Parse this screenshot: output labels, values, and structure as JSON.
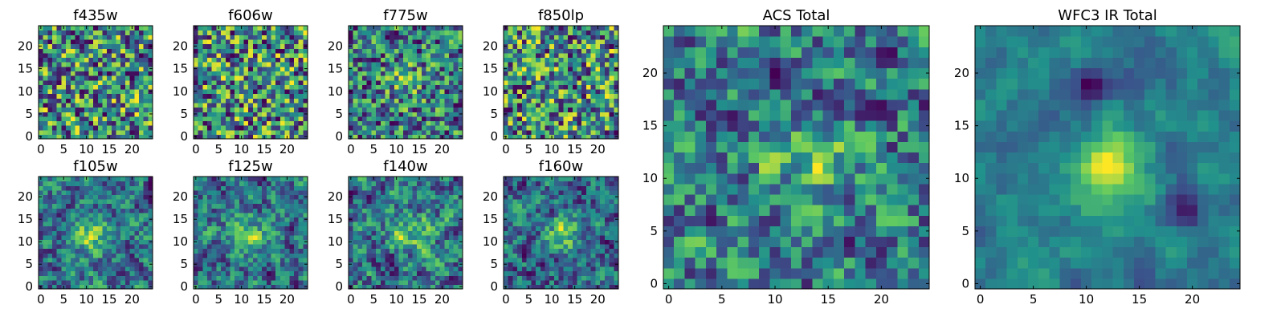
{
  "figure": {
    "colormap": "viridis",
    "colormap_stops": [
      "#440154",
      "#3b528b",
      "#21918c",
      "#5ec962",
      "#fde725"
    ]
  },
  "chart_data": [
    {
      "type": "heatmap",
      "title": "f435w",
      "grid": [
        25,
        25
      ],
      "xticks": [
        0,
        5,
        10,
        15,
        20
      ],
      "yticks": [
        0,
        5,
        10,
        15,
        20
      ],
      "xlim": [
        -0.5,
        24.5
      ],
      "ylim": [
        -0.5,
        24.5
      ],
      "seed": 11,
      "smooth": 0,
      "blobs": []
    },
    {
      "type": "heatmap",
      "title": "f606w",
      "grid": [
        25,
        25
      ],
      "xticks": [
        0,
        5,
        10,
        15,
        20
      ],
      "yticks": [
        0,
        5,
        10,
        15,
        20
      ],
      "xlim": [
        -0.5,
        24.5
      ],
      "ylim": [
        -0.5,
        24.5
      ],
      "seed": 23,
      "smooth": 0,
      "blobs": []
    },
    {
      "type": "heatmap",
      "title": "f775w",
      "grid": [
        25,
        25
      ],
      "xticks": [
        0,
        5,
        10,
        15,
        20
      ],
      "yticks": [
        0,
        5,
        10,
        15,
        20
      ],
      "xlim": [
        -0.5,
        24.5
      ],
      "ylim": [
        -0.5,
        24.5
      ],
      "seed": 37,
      "smooth": 0,
      "blobs": [
        [
          12,
          12,
          0.25,
          3
        ]
      ]
    },
    {
      "type": "heatmap",
      "title": "f850lp",
      "grid": [
        25,
        25
      ],
      "xticks": [
        0,
        5,
        10,
        15,
        20
      ],
      "yticks": [
        0,
        5,
        10,
        15,
        20
      ],
      "xlim": [
        -0.5,
        24.5
      ],
      "ylim": [
        -0.5,
        24.5
      ],
      "seed": 41,
      "smooth": 0,
      "blobs": []
    },
    {
      "type": "heatmap",
      "title": "f105w",
      "grid": [
        25,
        25
      ],
      "xticks": [
        0,
        5,
        10,
        15,
        20
      ],
      "yticks": [
        0,
        5,
        10,
        15,
        20
      ],
      "xlim": [
        -0.5,
        24.5
      ],
      "ylim": [
        -0.5,
        24.5
      ],
      "seed": 53,
      "smooth": 1,
      "blobs": [
        [
          11,
          11,
          0.35,
          3
        ]
      ]
    },
    {
      "type": "heatmap",
      "title": "f125w",
      "grid": [
        25,
        25
      ],
      "xticks": [
        0,
        5,
        10,
        15,
        20
      ],
      "yticks": [
        0,
        5,
        10,
        15,
        20
      ],
      "xlim": [
        -0.5,
        24.5
      ],
      "ylim": [
        -0.5,
        24.5
      ],
      "seed": 67,
      "smooth": 1,
      "blobs": [
        [
          12,
          12,
          0.3,
          3
        ]
      ]
    },
    {
      "type": "heatmap",
      "title": "f140w",
      "grid": [
        25,
        25
      ],
      "xticks": [
        0,
        5,
        10,
        15,
        20
      ],
      "yticks": [
        0,
        5,
        10,
        15,
        20
      ],
      "xlim": [
        -0.5,
        24.5
      ],
      "ylim": [
        -0.5,
        24.5
      ],
      "seed": 79,
      "smooth": 1,
      "blobs": [
        [
          13,
          12,
          0.35,
          3
        ]
      ]
    },
    {
      "type": "heatmap",
      "title": "f160w",
      "grid": [
        25,
        25
      ],
      "xticks": [
        0,
        5,
        10,
        15,
        20
      ],
      "yticks": [
        0,
        5,
        10,
        15,
        20
      ],
      "xlim": [
        -0.5,
        24.5
      ],
      "ylim": [
        -0.5,
        24.5
      ],
      "seed": 83,
      "smooth": 1,
      "blobs": [
        [
          13,
          12,
          0.45,
          3
        ]
      ]
    },
    {
      "type": "heatmap",
      "title": "ACS Total",
      "grid": [
        25,
        25
      ],
      "xticks": [
        0,
        5,
        10,
        15,
        20
      ],
      "yticks": [
        0,
        5,
        10,
        15,
        20
      ],
      "xlim": [
        -0.5,
        24.5
      ],
      "ylim": [
        -0.5,
        24.5
      ],
      "seed": 97,
      "smooth": 1,
      "blobs": [
        [
          14,
          12,
          0.25,
          3
        ]
      ]
    },
    {
      "type": "heatmap",
      "title": "WFC3 IR Total",
      "grid": [
        25,
        25
      ],
      "xticks": [
        0,
        5,
        10,
        15,
        20
      ],
      "yticks": [
        0,
        5,
        10,
        15,
        20
      ],
      "xlim": [
        -0.5,
        24.5
      ],
      "ylim": [
        -0.5,
        24.5
      ],
      "seed": 101,
      "smooth": 2,
      "blobs": [
        [
          12,
          11,
          0.7,
          2.5
        ],
        [
          10,
          19,
          -0.6,
          1.2
        ],
        [
          19,
          7,
          -0.5,
          1.3
        ]
      ]
    }
  ]
}
